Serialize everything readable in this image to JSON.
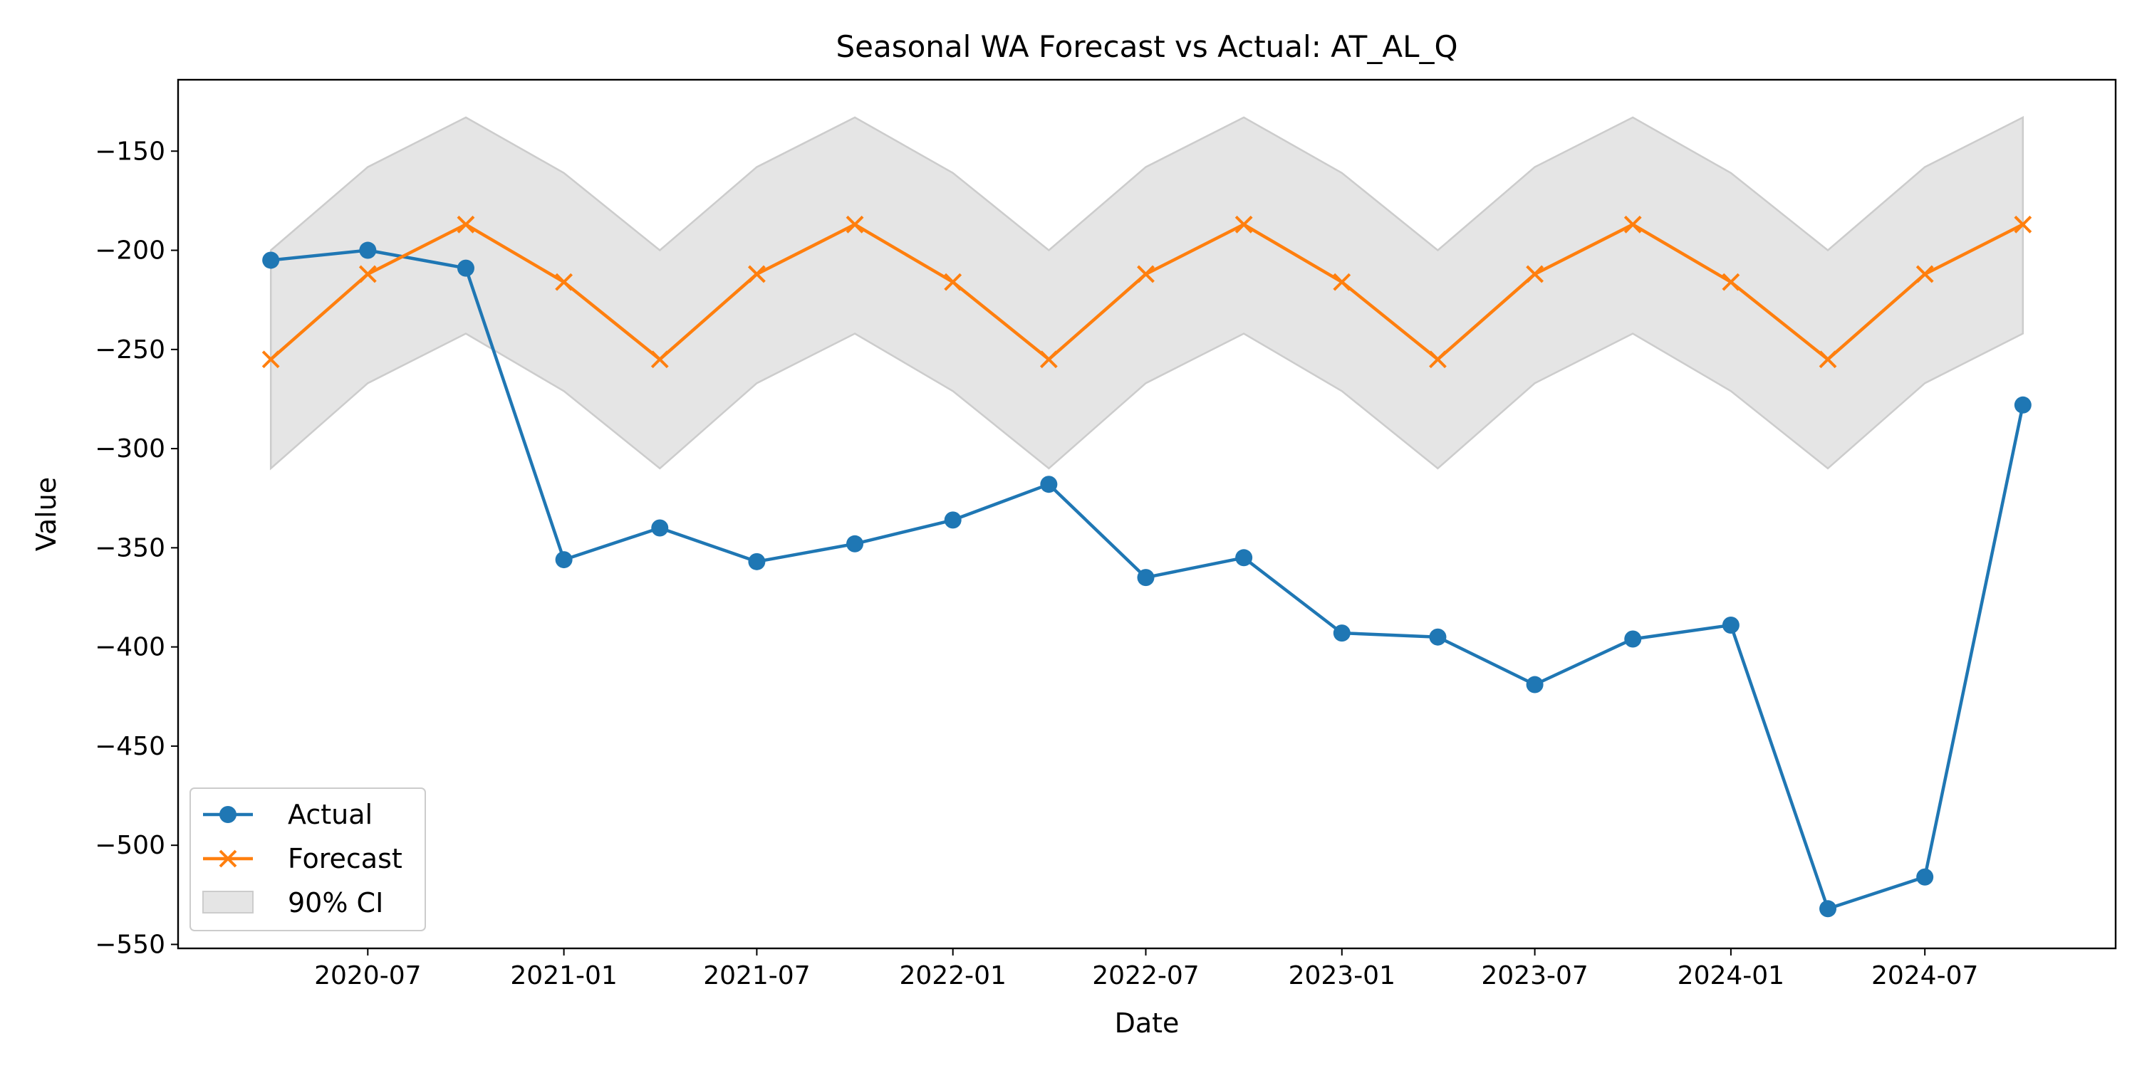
{
  "chart_data": {
    "type": "line",
    "title": "Seasonal WA Forecast vs Actual: AT_AL_Q",
    "xlabel": "Date",
    "ylabel": "Value",
    "x": [
      "2020-04-01",
      "2020-07-01",
      "2020-10-01",
      "2021-01-01",
      "2021-04-01",
      "2021-07-01",
      "2021-10-01",
      "2022-01-01",
      "2022-04-01",
      "2022-07-01",
      "2022-10-01",
      "2023-01-01",
      "2023-04-01",
      "2023-07-01",
      "2023-10-01",
      "2024-01-01",
      "2024-04-01",
      "2024-07-01",
      "2024-10-01"
    ],
    "x_ticks": [
      "2020-07",
      "2021-01",
      "2021-07",
      "2022-01",
      "2022-07",
      "2023-01",
      "2023-07",
      "2024-01",
      "2024-07"
    ],
    "x_tick_dates": [
      "2020-07-01",
      "2021-01-01",
      "2021-07-01",
      "2022-01-01",
      "2022-07-01",
      "2023-01-01",
      "2023-07-01",
      "2024-01-01",
      "2024-07-01"
    ],
    "xlim": [
      "2020-01-05",
      "2024-12-27"
    ],
    "ylim": [
      -552,
      -114
    ],
    "y_ticks": [
      -150,
      -200,
      -250,
      -300,
      -350,
      -400,
      -450,
      -500,
      -550
    ],
    "y_tick_labels": [
      "−150",
      "−200",
      "−250",
      "−300",
      "−350",
      "−400",
      "−450",
      "−500",
      "−550"
    ],
    "grid": false,
    "legend_position": "lower-left",
    "series": [
      {
        "name": "Actual",
        "color": "#1f77b4",
        "marker": "circle",
        "values": [
          -205,
          -200,
          -209,
          -356,
          -340,
          -357,
          -348,
          -336,
          -318,
          -365,
          -355,
          -393,
          -395,
          -419,
          -396,
          -389,
          -532,
          -516,
          -278
        ]
      },
      {
        "name": "Forecast",
        "color": "#ff7f0e",
        "marker": "x",
        "values": [
          -255,
          -212,
          -187,
          -216,
          -255,
          -212,
          -187,
          -216,
          -255,
          -212,
          -187,
          -216,
          -255,
          -212,
          -187,
          -216,
          -255,
          -212,
          -187
        ]
      }
    ],
    "band": {
      "name": "90% CI",
      "color": "#e5e5e5",
      "edge_color": "#cccccc",
      "upper": [
        -200,
        -158,
        -133,
        -161,
        -200,
        -158,
        -133,
        -161,
        -200,
        -158,
        -133,
        -161,
        -200,
        -158,
        -133,
        -161,
        -200,
        -158,
        -133
      ],
      "lower": [
        -310,
        -267,
        -242,
        -271,
        -310,
        -267,
        -242,
        -271,
        -310,
        -267,
        -242,
        -271,
        -310,
        -267,
        -242,
        -271,
        -310,
        -267,
        -242
      ]
    }
  }
}
